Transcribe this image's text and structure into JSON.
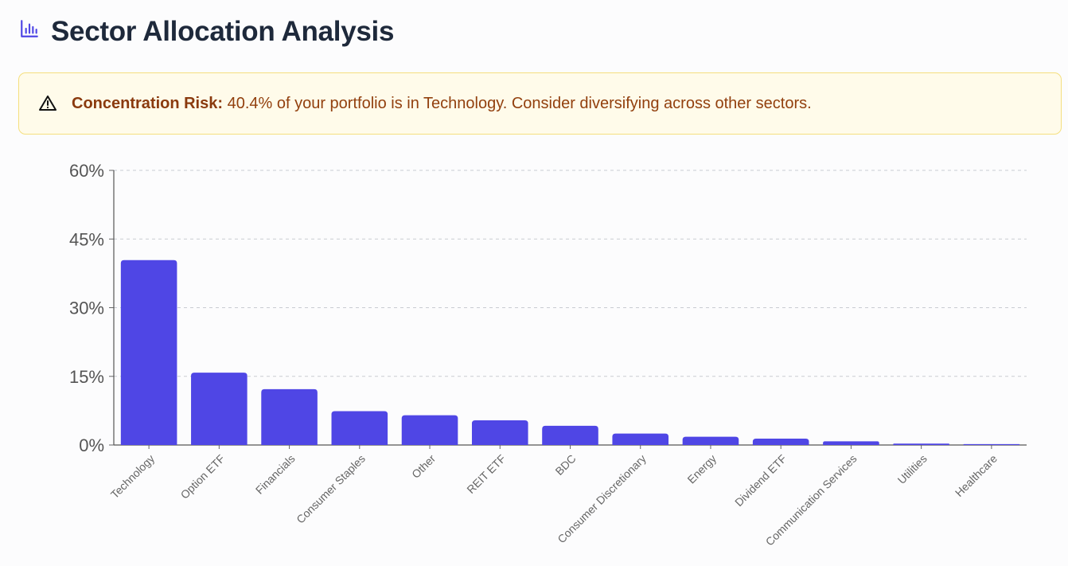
{
  "header": {
    "title": "Sector Allocation Analysis",
    "icon": "bar-chart-icon"
  },
  "alert": {
    "icon": "warning-triangle-icon",
    "label": "Concentration Risk:",
    "message": "40.4% of your portfolio is in Technology. Consider diversifying across other sectors."
  },
  "colors": {
    "accent": "#4f46e5",
    "alert_bg": "#fffbea",
    "alert_border": "#f5df7e",
    "alert_text": "#92400e",
    "title": "#1e293b"
  },
  "chart_data": {
    "type": "bar",
    "title": "",
    "xlabel": "",
    "ylabel": "",
    "ylim": [
      0,
      60
    ],
    "yticks": [
      0,
      15,
      30,
      45,
      60
    ],
    "ytick_labels": [
      "0%",
      "15%",
      "30%",
      "45%",
      "60%"
    ],
    "grid": true,
    "categories": [
      "Technology",
      "Option ETF",
      "Financials",
      "Consumer Staples",
      "Other",
      "REIT ETF",
      "BDC",
      "Consumer Discretionary",
      "Energy",
      "Dividend ETF",
      "Communication Services",
      "Utilities",
      "Healthcare"
    ],
    "values": [
      40.4,
      15.8,
      12.2,
      7.4,
      6.5,
      5.4,
      4.2,
      2.5,
      1.8,
      1.4,
      0.8,
      0.3,
      0.2
    ],
    "color": "#4f46e5"
  }
}
